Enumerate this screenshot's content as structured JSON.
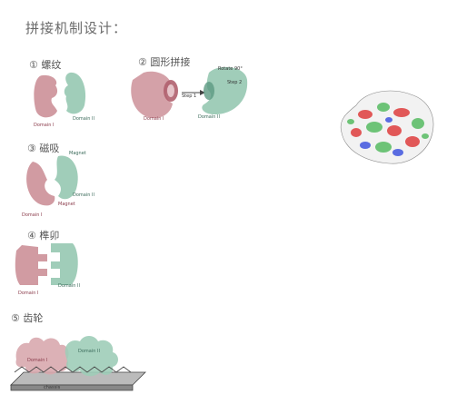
{
  "title": "拼接机制设计：",
  "sections": [
    {
      "heading": "① 螺纹",
      "labels": [
        "Domain I",
        "Domain II"
      ]
    },
    {
      "heading": "② 圆形拼接",
      "labels": [
        "Domain I",
        "Domain II",
        "Step 1",
        "Step 2",
        "Rotate 90°"
      ]
    },
    {
      "heading": "③ 磁吸",
      "labels": [
        "Domain I",
        "Domain II",
        "Magnet",
        "Magnet"
      ]
    },
    {
      "heading": "④ 榫卯",
      "labels": [
        "Domain I",
        "Domain II"
      ]
    },
    {
      "heading": "⑤ 齿轮",
      "labels": [
        "Domain I",
        "Domain II",
        "chassis"
      ]
    }
  ],
  "colors": {
    "red": "#c98a92",
    "green": "#8fc4ad",
    "protein_red": "#e04848",
    "protein_green": "#5fbf6a",
    "protein_blue": "#4a5ee0"
  }
}
